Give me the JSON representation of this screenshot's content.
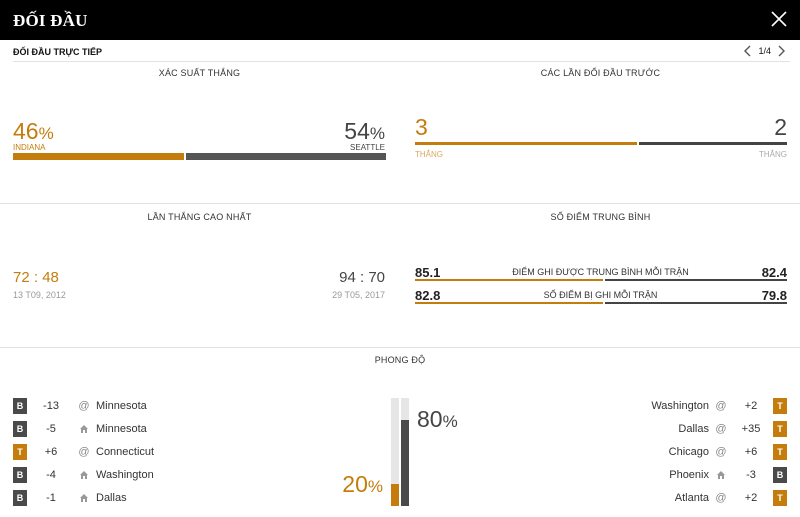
{
  "header": {
    "title": "ĐỐI ĐẦU"
  },
  "subheader": {
    "label": "ĐỐI ĐẦU TRỰC TIẾP",
    "page": "1/4"
  },
  "win_prob": {
    "title": "XÁC SUẤT THẮNG",
    "left": {
      "value": "46",
      "unit": "%",
      "team": "INDIANA"
    },
    "right": {
      "value": "54",
      "unit": "%",
      "team": "SEATTLE"
    }
  },
  "previous": {
    "title": "CÁC LẦN ĐỐI ĐẦU TRƯỚC",
    "left": {
      "value": "3",
      "label": "THẮNG"
    },
    "right": {
      "value": "2",
      "label": "THẮNG"
    }
  },
  "biggest_win": {
    "title": "LẦN THẮNG CAO NHẤT",
    "left": {
      "a": "72",
      "sep": ":",
      "b": "48",
      "date": "13 T09, 2012"
    },
    "right": {
      "a": "94",
      "sep": ":",
      "b": "70",
      "date": "29 T05, 2017"
    }
  },
  "avg_points": {
    "title": "SỐ ĐIỂM TRUNG BÌNH",
    "rows": [
      {
        "left": "85.1",
        "label": "ĐIỂM GHI ĐƯỢC TRUNG BÌNH MỖI TRẬN",
        "right": "82.4"
      },
      {
        "left": "82.8",
        "label": "SỐ ĐIỂM BỊ GHI MỖI TRẬN",
        "right": "79.8"
      }
    ]
  },
  "form": {
    "title": "PHONG ĐỘ",
    "left_pct": {
      "value": "20",
      "unit": "%"
    },
    "right_pct": {
      "value": "80",
      "unit": "%"
    },
    "left": [
      {
        "result": "B",
        "diff": "-13",
        "venue": "away",
        "opponent": "Minnesota"
      },
      {
        "result": "B",
        "diff": "-5",
        "venue": "home",
        "opponent": "Minnesota"
      },
      {
        "result": "T",
        "diff": "+6",
        "venue": "away",
        "opponent": "Connecticut"
      },
      {
        "result": "B",
        "diff": "-4",
        "venue": "home",
        "opponent": "Washington"
      },
      {
        "result": "B",
        "diff": "-1",
        "venue": "home",
        "opponent": "Dallas"
      }
    ],
    "right": [
      {
        "result": "T",
        "diff": "+2",
        "venue": "away",
        "opponent": "Washington"
      },
      {
        "result": "T",
        "diff": "+35",
        "venue": "away",
        "opponent": "Dallas"
      },
      {
        "result": "T",
        "diff": "+6",
        "venue": "away",
        "opponent": "Chicago"
      },
      {
        "result": "B",
        "diff": "-3",
        "venue": "home",
        "opponent": "Phoenix"
      },
      {
        "result": "T",
        "diff": "+2",
        "venue": "away",
        "opponent": "Atlanta"
      }
    ],
    "venue_symbols": {
      "away": "@"
    }
  },
  "colors": {
    "accent": "#c47c0c",
    "dark": "#4a4a4a",
    "topbar": "#000000"
  }
}
